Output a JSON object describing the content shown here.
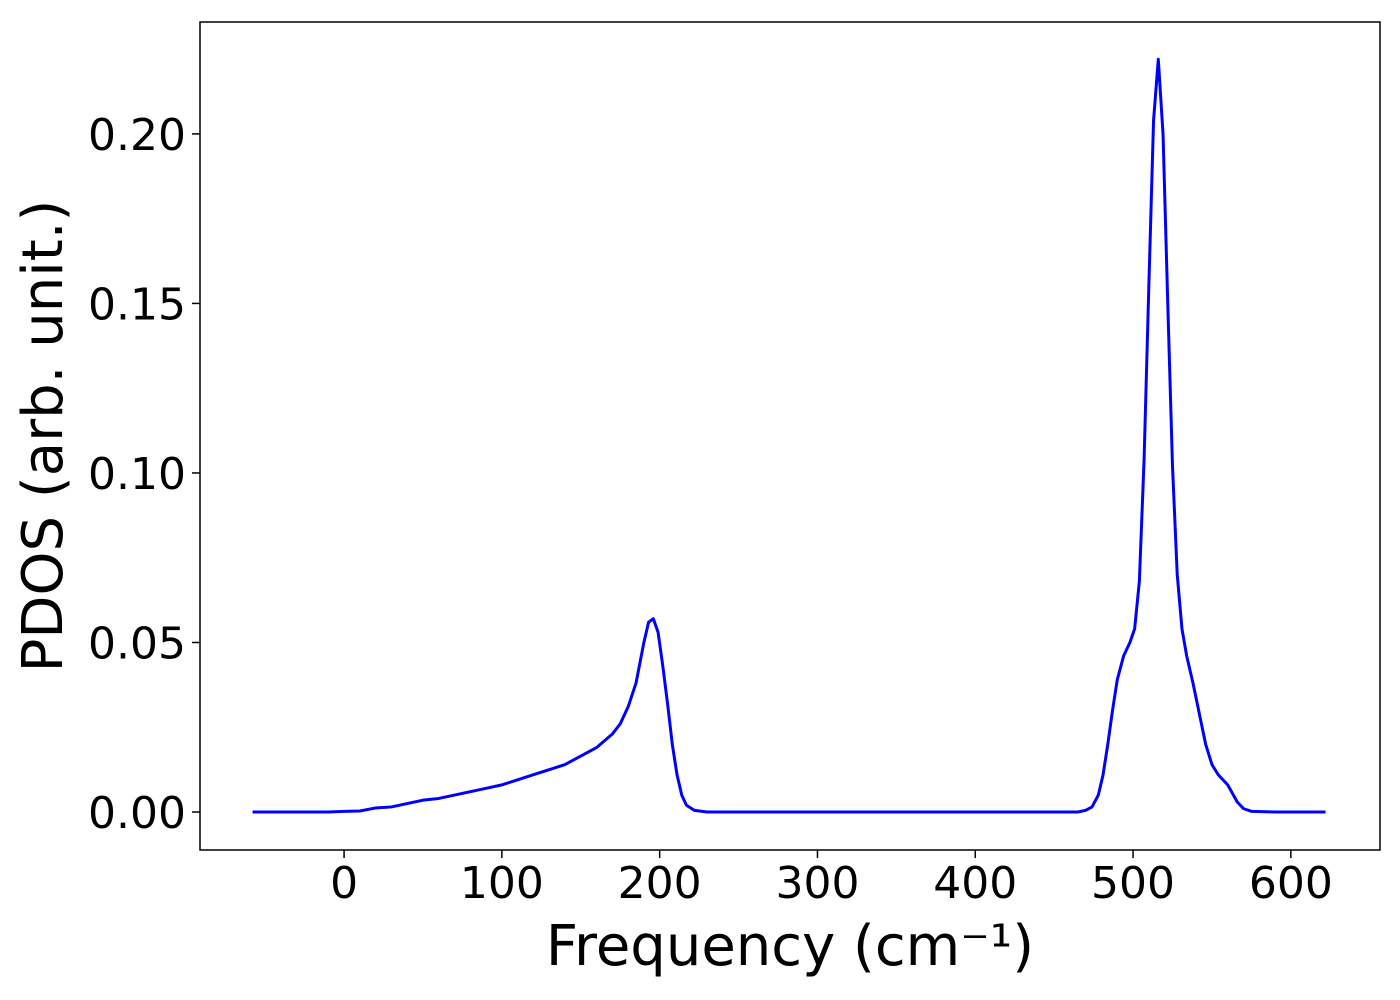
{
  "chart_data": {
    "type": "line",
    "xlabel": "Frequency (cm⁻¹)",
    "ylabel": "PDOS (arb. unit.)",
    "x": [
      -58,
      -10,
      0,
      10,
      20,
      30,
      40,
      50,
      60,
      70,
      80,
      90,
      100,
      110,
      120,
      130,
      140,
      150,
      160,
      170,
      175,
      180,
      185,
      190,
      193,
      196,
      199,
      202,
      205,
      208,
      211,
      214,
      217,
      222,
      230,
      300,
      400,
      465,
      470,
      474,
      478,
      481,
      484,
      487,
      490,
      494,
      498,
      501,
      504,
      507,
      510,
      513,
      516,
      519,
      522,
      525,
      528,
      531,
      534,
      538,
      542,
      546,
      550,
      554,
      560,
      566,
      570,
      575,
      590,
      622
    ],
    "series": [
      {
        "color": "#0000ff",
        "values": [
          0,
          0,
          0.0002,
          0.0003,
          0.0012,
          0.0015,
          0.0025,
          0.0035,
          0.004,
          0.005,
          0.006,
          0.007,
          0.008,
          0.0095,
          0.011,
          0.0125,
          0.014,
          0.0165,
          0.019,
          0.023,
          0.026,
          0.031,
          0.038,
          0.05,
          0.056,
          0.057,
          0.053,
          0.043,
          0.032,
          0.02,
          0.011,
          0.005,
          0.002,
          0.0005,
          0,
          0,
          0,
          0,
          0.0005,
          0.0015,
          0.005,
          0.011,
          0.02,
          0.03,
          0.039,
          0.046,
          0.05,
          0.054,
          0.068,
          0.104,
          0.155,
          0.204,
          0.222,
          0.2,
          0.15,
          0.102,
          0.07,
          0.054,
          0.046,
          0.038,
          0.029,
          0.02,
          0.014,
          0.011,
          0.008,
          0.003,
          0.001,
          0.0002,
          0,
          0
        ]
      }
    ],
    "xlim": [
      -91.3,
      656.5
    ],
    "ylim": [
      -0.0112,
      0.233
    ],
    "xticks": [
      0,
      100,
      200,
      300,
      400,
      500,
      600
    ],
    "yticks": [
      {
        "value": 0,
        "label": "0.00"
      },
      {
        "value": 0.05,
        "label": "0.05"
      },
      {
        "value": 0.1,
        "label": "0.10"
      },
      {
        "value": 0.15,
        "label": "0.15"
      },
      {
        "value": 0.2,
        "label": "0.20"
      }
    ],
    "grid": false
  }
}
